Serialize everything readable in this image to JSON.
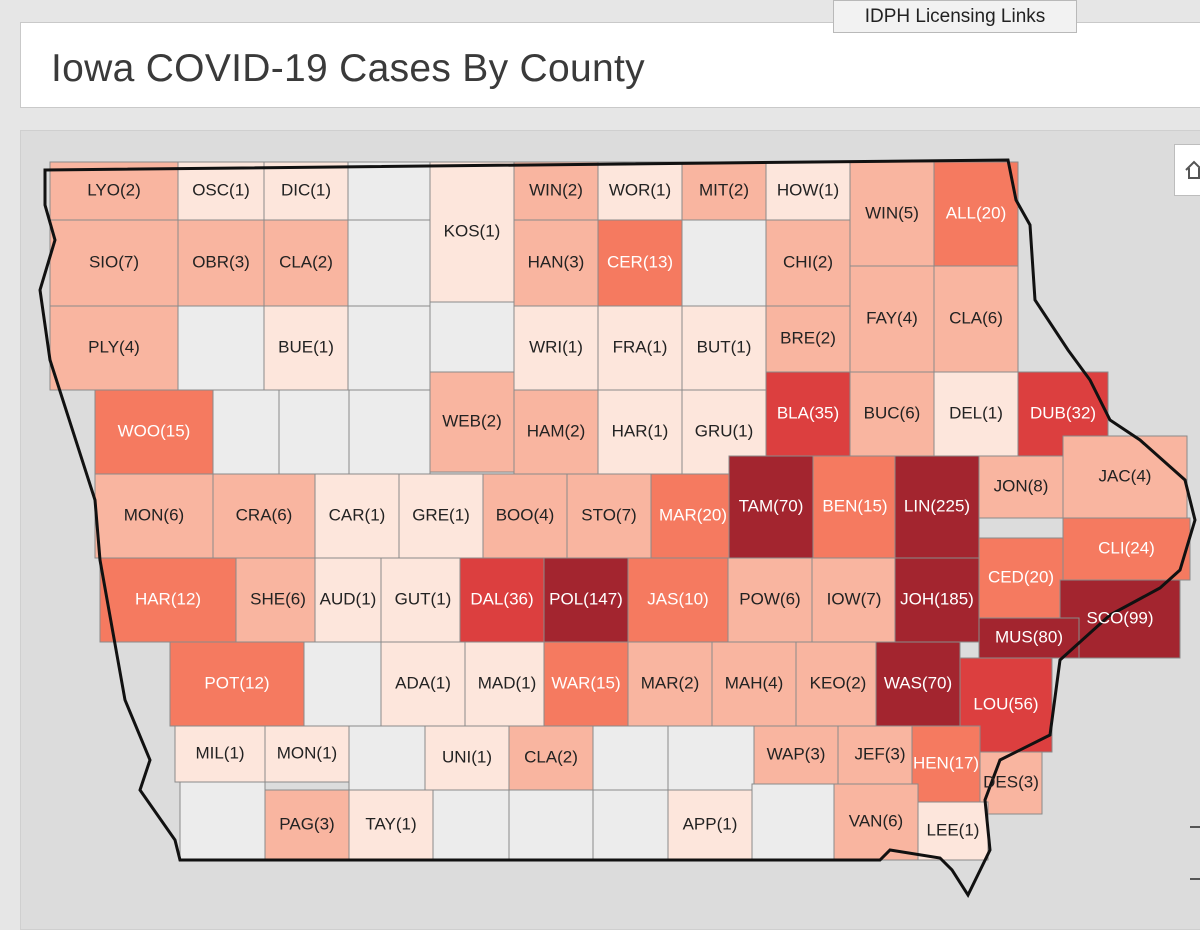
{
  "header": {
    "title": "Iowa COVID-19 Cases By County",
    "links_button": "IDPH Licensing Links"
  },
  "map": {
    "colors": {
      "c0": "#ececec",
      "c1": "#fde6dc",
      "c2": "#f9b5a0",
      "c3": "#f57a60",
      "c4": "#dc3f3f",
      "c5": "#a3252f",
      "light_text": "#ffffff",
      "dark_text": "#222222"
    },
    "counties": [
      {
        "label": "LYO(2)",
        "cases": 2
      },
      {
        "label": "OSC(1)",
        "cases": 1
      },
      {
        "label": "DIC(1)",
        "cases": 1
      },
      {
        "label": "KOS(1)",
        "cases": 1
      },
      {
        "label": "WIN(2)",
        "cases": 2
      },
      {
        "label": "WOR(1)",
        "cases": 1
      },
      {
        "label": "MIT(2)",
        "cases": 2
      },
      {
        "label": "HOW(1)",
        "cases": 1
      },
      {
        "label": "WIN(5)",
        "cases": 5
      },
      {
        "label": "ALL(20)",
        "cases": 20
      },
      {
        "label": "SIO(7)",
        "cases": 7
      },
      {
        "label": "OBR(3)",
        "cases": 3
      },
      {
        "label": "CLA(2)",
        "cases": 2
      },
      {
        "label": "HAN(3)",
        "cases": 3
      },
      {
        "label": "CER(13)",
        "cases": 13
      },
      {
        "label": "CHI(2)",
        "cases": 2
      },
      {
        "label": "PLY(4)",
        "cases": 4
      },
      {
        "label": "BUE(1)",
        "cases": 1
      },
      {
        "label": "WRI(1)",
        "cases": 1
      },
      {
        "label": "FRA(1)",
        "cases": 1
      },
      {
        "label": "BUT(1)",
        "cases": 1
      },
      {
        "label": "BRE(2)",
        "cases": 2
      },
      {
        "label": "FAY(4)",
        "cases": 4
      },
      {
        "label": "CLA(6)",
        "cases": 6
      },
      {
        "label": "WOO(15)",
        "cases": 15
      },
      {
        "label": "WEB(2)",
        "cases": 2
      },
      {
        "label": "HAM(2)",
        "cases": 2
      },
      {
        "label": "HAR(1)",
        "cases": 1
      },
      {
        "label": "GRU(1)",
        "cases": 1
      },
      {
        "label": "BLA(35)",
        "cases": 35
      },
      {
        "label": "BUC(6)",
        "cases": 6
      },
      {
        "label": "DEL(1)",
        "cases": 1
      },
      {
        "label": "DUB(32)",
        "cases": 32
      },
      {
        "label": "MON(6)",
        "cases": 6
      },
      {
        "label": "CRA(6)",
        "cases": 6
      },
      {
        "label": "CAR(1)",
        "cases": 1
      },
      {
        "label": "GRE(1)",
        "cases": 1
      },
      {
        "label": "BOO(4)",
        "cases": 4
      },
      {
        "label": "STO(7)",
        "cases": 7
      },
      {
        "label": "MAR(20)",
        "cases": 20
      },
      {
        "label": "TAM(70)",
        "cases": 70
      },
      {
        "label": "BEN(15)",
        "cases": 15
      },
      {
        "label": "LIN(225)",
        "cases": 225
      },
      {
        "label": "JON(8)",
        "cases": 8
      },
      {
        "label": "JAC(4)",
        "cases": 4
      },
      {
        "label": "HAR(12)",
        "cases": 12
      },
      {
        "label": "SHE(6)",
        "cases": 6
      },
      {
        "label": "AUD(1)",
        "cases": 1
      },
      {
        "label": "GUT(1)",
        "cases": 1
      },
      {
        "label": "DAL(36)",
        "cases": 36
      },
      {
        "label": "POL(147)",
        "cases": 147
      },
      {
        "label": "JAS(10)",
        "cases": 10
      },
      {
        "label": "POW(6)",
        "cases": 6
      },
      {
        "label": "IOW(7)",
        "cases": 7
      },
      {
        "label": "JOH(185)",
        "cases": 185
      },
      {
        "label": "CED(20)",
        "cases": 20
      },
      {
        "label": "CLI(24)",
        "cases": 24
      },
      {
        "label": "SCO(99)",
        "cases": 99
      },
      {
        "label": "POT(12)",
        "cases": 12
      },
      {
        "label": "ADA(1)",
        "cases": 1
      },
      {
        "label": "MAD(1)",
        "cases": 1
      },
      {
        "label": "WAR(15)",
        "cases": 15
      },
      {
        "label": "MAR(2)",
        "cases": 2
      },
      {
        "label": "MAH(4)",
        "cases": 4
      },
      {
        "label": "KEO(2)",
        "cases": 2
      },
      {
        "label": "WAS(70)",
        "cases": 70
      },
      {
        "label": "MUS(80)",
        "cases": 80
      },
      {
        "label": "LOU(56)",
        "cases": 56
      },
      {
        "label": "MIL(1)",
        "cases": 1
      },
      {
        "label": "MON(1)",
        "cases": 1
      },
      {
        "label": "UNI(1)",
        "cases": 1
      },
      {
        "label": "CLA(2)",
        "cases": 2
      },
      {
        "label": "WAP(3)",
        "cases": 3
      },
      {
        "label": "JEF(3)",
        "cases": 3
      },
      {
        "label": "HEN(17)",
        "cases": 17
      },
      {
        "label": "DES(3)",
        "cases": 3
      },
      {
        "label": "PAG(3)",
        "cases": 3
      },
      {
        "label": "TAY(1)",
        "cases": 1
      },
      {
        "label": "APP(1)",
        "cases": 1
      },
      {
        "label": "VAN(6)",
        "cases": 6
      },
      {
        "label": "LEE(1)",
        "cases": 1
      }
    ]
  }
}
